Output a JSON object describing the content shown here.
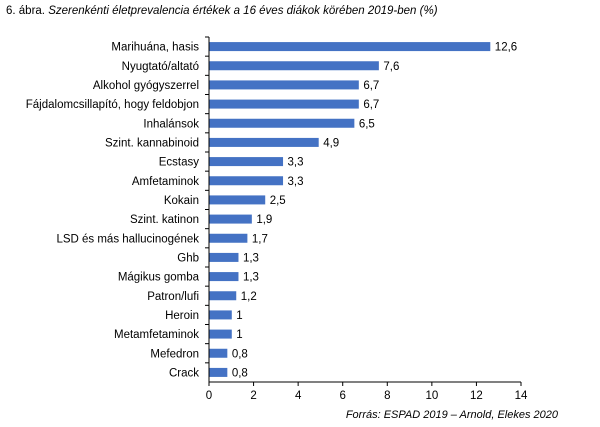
{
  "header": {
    "figure_label": "6. ábra.",
    "title": "Szerenkénti életprevalencia értékek a 16 éves diákok körében 2019-ben (%)"
  },
  "source": "Forrás: ESPAD 2019 – Arnold, Elekes 2020",
  "colors": {
    "bar": "#4472C4",
    "axis": "#000000"
  },
  "chart_data": {
    "type": "bar",
    "orientation": "horizontal",
    "title": "Szerenkénti életprevalencia értékek a 16 éves diákok körében 2019-ben (%)",
    "categories": [
      "Marihuána, hasis",
      "Nyugtató/altató",
      "Alkohol gyógyszerrel",
      "Fájdalomcsillapító, hogy feldobjon",
      "Inhalánsok",
      "Szint. kannabinoid",
      "Ecstasy",
      "Amfetaminok",
      "Kokain",
      "Szint. katinon",
      "LSD és más hallucinogének",
      "Ghb",
      "Mágikus gomba",
      "Patron/lufi",
      "Heroin",
      "Metamfetaminok",
      "Mefedron",
      "Crack"
    ],
    "values": [
      12.6,
      7.6,
      6.7,
      6.7,
      6.5,
      4.9,
      3.3,
      3.3,
      2.5,
      1.9,
      1.7,
      1.3,
      1.3,
      1.2,
      1,
      1,
      0.8,
      0.8
    ],
    "value_labels": [
      "12,6",
      "7,6",
      "6,7",
      "6,7",
      "6,5",
      "4,9",
      "3,3",
      "3,3",
      "2,5",
      "1,9",
      "1,7",
      "1,3",
      "1,3",
      "1,2",
      "1",
      "1",
      "0,8",
      "0,8"
    ],
    "xlim": [
      0,
      14
    ],
    "xticks": [
      0,
      2,
      4,
      6,
      8,
      10,
      12,
      14
    ],
    "grid": false,
    "legend": "none",
    "xlabel": "",
    "ylabel": ""
  }
}
